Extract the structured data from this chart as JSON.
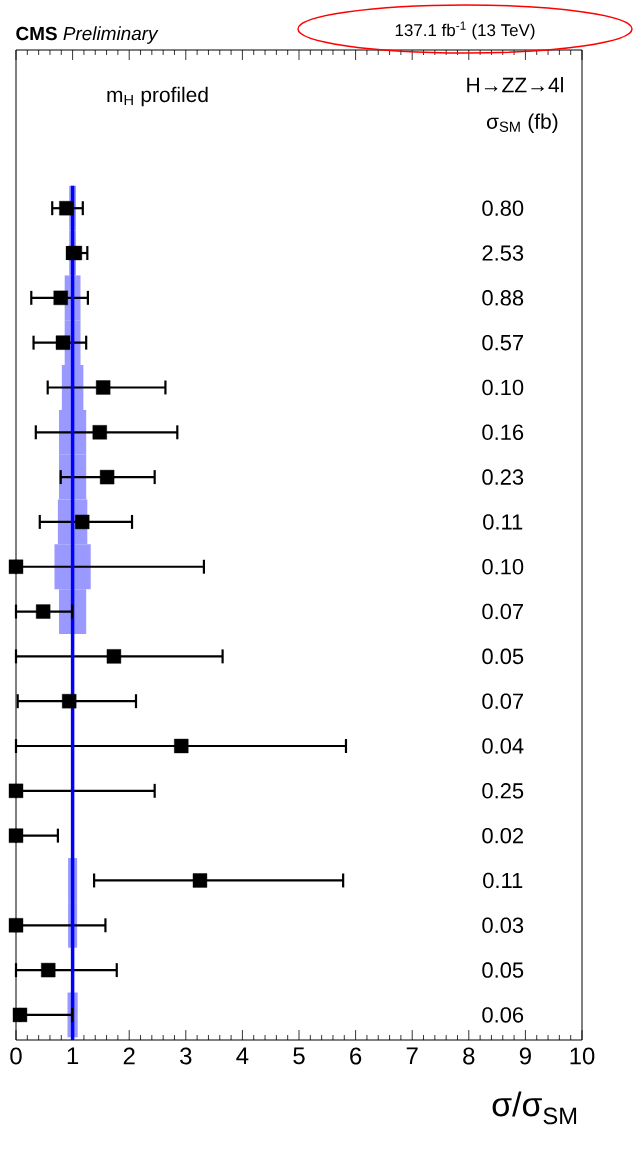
{
  "chart_data": {
    "type": "scatter",
    "orientation": "horizontal",
    "title": "**CMS** *Preliminary*",
    "subtitle": "137.1 fb$^{-1}$ (13 TeV)",
    "xlabel": "σ/σ$_{SM}$",
    "annotations": [
      "m$_{H}$ profiled",
      "H→ZZ→4l",
      "σ$_{SM}$ (fb)"
    ],
    "categories": [
      "0.80",
      "2.53",
      "0.88",
      "0.57",
      "0.10",
      "0.16",
      "0.23",
      "0.11",
      "0.10",
      "0.07",
      "0.05",
      "0.07",
      "0.04",
      "0.25",
      "0.02",
      "0.11",
      "0.03",
      "0.05",
      "0.06"
    ],
    "series": [
      {
        "type": "bar",
        "color": "#9999ff",
        "base": [
          0.94,
          0.94,
          0.86,
          0.86,
          0.81,
          0.76,
          0.76,
          0.74,
          0.68,
          0.76,
          null,
          null,
          null,
          null,
          null,
          0.92,
          0.92,
          null,
          0.91
        ],
        "values": [
          0.12,
          0.12,
          0.28,
          0.28,
          0.38,
          0.48,
          0.48,
          0.52,
          0.64,
          0.48,
          null,
          null,
          null,
          null,
          null,
          0.16,
          0.16,
          null,
          0.18
        ]
      },
      {
        "color": "#000000",
        "marker": "square",
        "values": [
          0.89,
          1.04,
          0.79,
          0.83,
          1.54,
          1.48,
          1.61,
          1.17,
          0,
          0.48,
          1.73,
          0.94,
          2.92,
          0,
          0,
          3.25,
          0,
          0.57,
          0.07
        ],
        "errors": [
          [
            0.64,
            1.18
          ],
          [
            0.9,
            1.26
          ],
          [
            0.27,
            1.27
          ],
          [
            0.31,
            1.24
          ],
          [
            0.56,
            2.64
          ],
          [
            0.35,
            2.85
          ],
          [
            0.79,
            2.45
          ],
          [
            0.42,
            2.05
          ],
          [
            0,
            3.32
          ],
          [
            0,
            0.99
          ],
          [
            0,
            3.65
          ],
          [
            0.03,
            2.12
          ],
          [
            0,
            5.83
          ],
          [
            0,
            2.45
          ],
          [
            0,
            0.74
          ],
          [
            1.38,
            5.78
          ],
          [
            0,
            1.58
          ],
          [
            0,
            1.78
          ],
          [
            0.07,
            0.99
          ]
        ]
      }
    ],
    "ref_lines": [
      {
        "axis": "x",
        "value": 1,
        "color": "#0000ff"
      }
    ],
    "xlim": [
      0,
      10
    ],
    "xticks": [
      0,
      1,
      2,
      3,
      4,
      5,
      6,
      7,
      8,
      9,
      10
    ]
  }
}
